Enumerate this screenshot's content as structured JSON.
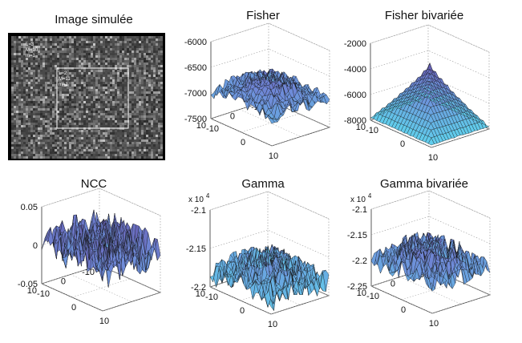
{
  "chart_data": [
    {
      "id": "image-simulee",
      "type": "image",
      "title": "Image simulée",
      "outer_region_labels": [
        "L=3",
        "M=10",
        "m=1"
      ],
      "inner_region_labels": [
        "L=2",
        "M=11",
        "m=1"
      ],
      "colors": {
        "frame": "#000000",
        "region_border": "#ffffff"
      }
    },
    {
      "id": "fisher",
      "type": "surface",
      "title": "Fisher",
      "multiplier": "",
      "zlim": [
        -7500,
        -6000
      ],
      "zticks": [
        "-6000",
        "-6500",
        "-7000",
        "-7500"
      ],
      "zticks_values": [
        -6000,
        -6500,
        -7000,
        -7500
      ],
      "xticks": [
        "-10",
        "0",
        "10"
      ],
      "yticks": [
        "10",
        "0",
        "-10"
      ],
      "xlim": [
        -10,
        10
      ],
      "ylim": [
        -10,
        10
      ],
      "shape": "noisy_plateau",
      "base": -7000,
      "peak": -6600,
      "noise": 260
    },
    {
      "id": "fisher-bivariee",
      "type": "surface",
      "title": "Fisher bivariée",
      "multiplier": "",
      "zlim": [
        -8000,
        -2000
      ],
      "zticks": [
        "-2000",
        "-4000",
        "-6000",
        "-8000"
      ],
      "zticks_values": [
        -2000,
        -4000,
        -6000,
        -8000
      ],
      "xticks": [
        "-10",
        "0",
        "10"
      ],
      "yticks": [
        "10",
        "0",
        "-10"
      ],
      "xlim": [
        -10,
        10
      ],
      "ylim": [
        -10,
        10
      ],
      "shape": "pyramid",
      "base": -7800,
      "peak": -3200,
      "noise": 60
    },
    {
      "id": "ncc",
      "type": "surface",
      "title": "NCC",
      "multiplier": "",
      "zlim": [
        -0.05,
        0.05
      ],
      "zticks": [
        "0.05",
        "0",
        "-0.05"
      ],
      "zticks_values": [
        0.05,
        0,
        -0.05
      ],
      "xticks": [
        "-10",
        "0",
        "10"
      ],
      "yticks": [
        "10",
        "0",
        "-10"
      ],
      "xlim": [
        -10,
        10
      ],
      "ylim": [
        -10,
        10
      ],
      "shape": "noise",
      "base": 0,
      "peak": 0.012,
      "noise": 0.05
    },
    {
      "id": "gamma",
      "type": "surface",
      "title": "Gamma",
      "multiplier": "x 10",
      "multiplier_exp": "4",
      "zlim": [
        -2.2,
        -2.1
      ],
      "zticks": [
        "-2.1",
        "-2.15",
        "-2.2"
      ],
      "zticks_values": [
        -2.1,
        -2.15,
        -2.2
      ],
      "xticks": [
        "-10",
        "0",
        "10"
      ],
      "yticks": [
        "10",
        "0",
        "-10"
      ],
      "xlim": [
        -10,
        10
      ],
      "ylim": [
        -10,
        10
      ],
      "shape": "noisy_plateau",
      "base": -2.185,
      "peak": -2.155,
      "noise": 0.03
    },
    {
      "id": "gamma-bivariee",
      "type": "surface",
      "title": "Gamma bivariée",
      "multiplier": "x 10",
      "multiplier_exp": "4",
      "zlim": [
        -2.25,
        -2.1
      ],
      "zticks": [
        "-2.1",
        "-2.15",
        "-2.2",
        "-2.25"
      ],
      "zticks_values": [
        -2.1,
        -2.15,
        -2.2,
        -2.25
      ],
      "xticks": [
        "-10",
        "0",
        "10"
      ],
      "yticks": [
        "10",
        "0",
        "-10"
      ],
      "xlim": [
        -10,
        10
      ],
      "ylim": [
        -10,
        10
      ],
      "shape": "noisy_plateau",
      "base": -2.2,
      "peak": -2.16,
      "noise": 0.045
    }
  ],
  "colors": {
    "surface_low": "#5fd4ee",
    "surface_mid": "#6f89d8",
    "surface_high": "#5a2f86",
    "edge": "#141414",
    "box": "#333333",
    "grid": "#9a9a9a"
  }
}
